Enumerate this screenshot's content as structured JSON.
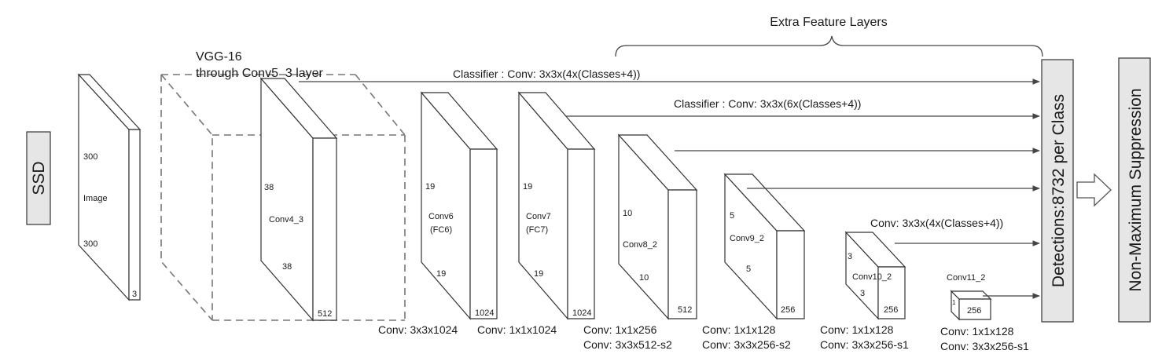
{
  "ssd_label": "SSD",
  "vgg_title_line1": "VGG-16",
  "vgg_title_line2": "through Conv5_3 layer",
  "extra_title": "Extra Feature Layers",
  "classifier1": "Classifier : Conv: 3x3x(4x(Classes+4))",
  "classifier2": "Classifier : Conv: 3x3x(6x(Classes+4))",
  "classifier3": "Conv: 3x3x(4x(Classes+4))",
  "detections_label": "Detections:8732  per Class",
  "nms_label": "Non-Maximum Suppression",
  "image_block": {
    "top": "300",
    "middle": "Image",
    "bottom": "300",
    "depth": "3"
  },
  "conv4": {
    "size": "38",
    "name": "Conv4_3",
    "size2": "38",
    "depth": "512"
  },
  "conv6": {
    "size": "19",
    "name1": "Conv6",
    "name2": "(FC6)",
    "size2": "19",
    "depth": "1024"
  },
  "conv7": {
    "size": "19",
    "name1": "Conv7",
    "name2": "(FC7)",
    "size2": "19",
    "depth": "1024"
  },
  "conv8": {
    "size": "10",
    "name": "Conv8_2",
    "size2": "10",
    "depth": "512"
  },
  "conv9": {
    "size": "5",
    "name": "Conv9_2",
    "size2": "5",
    "depth": "256"
  },
  "conv10": {
    "size": "3",
    "name": "Conv10_2",
    "size2": "3",
    "depth": "256"
  },
  "conv11": {
    "name": "Conv11_2",
    "size": "1",
    "depth": "256"
  },
  "bottom_labels": {
    "c6": "Conv: 3x3x1024",
    "c7": "Conv: 1x1x1024",
    "c8a": "Conv: 1x1x256",
    "c8b": "Conv:  3x3x512-s2",
    "c9a": "Conv: 1x1x128",
    "c9b": "Conv: 3x3x256-s2",
    "c10a": "Conv: 1x1x128",
    "c10b": "Conv: 3x3x256-s1",
    "c11a": "Conv: 1x1x128",
    "c11b": "Conv: 3x3x256-s1"
  }
}
